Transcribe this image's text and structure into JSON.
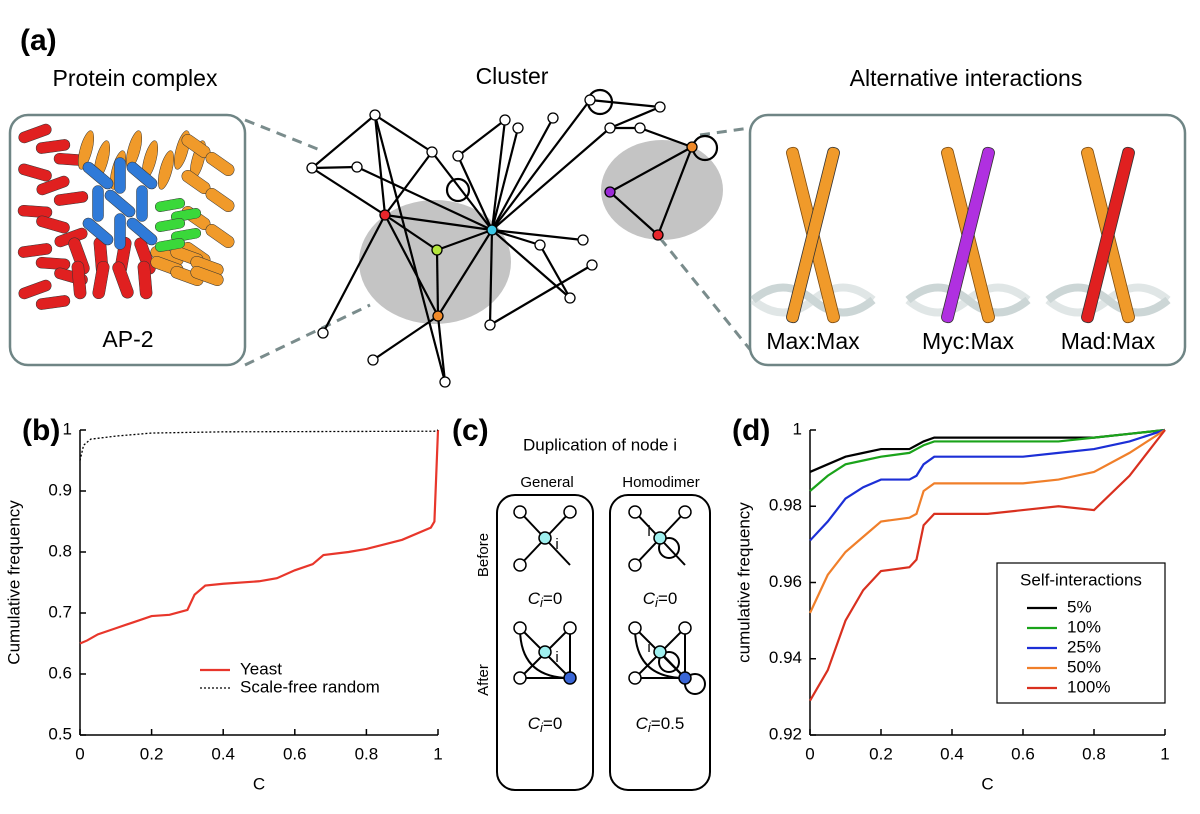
{
  "panel_a": {
    "label": "(a)",
    "complex_title": "Protein complex",
    "complex_name": "AP-2",
    "cluster_title": "Cluster",
    "alt_title": "Alternative interactions",
    "alt_labels": [
      "Max:Max",
      "Myc:Max",
      "Mad:Max"
    ]
  },
  "panel_c": {
    "label": "(c)",
    "title": "Duplication of node i",
    "columns": [
      "General",
      "Homodimer"
    ],
    "rows": [
      "Before",
      "After"
    ],
    "node_label": "i",
    "symbol": "C",
    "index": "i",
    "coefficients": [
      "=0",
      "=0",
      "=0",
      "=0.5"
    ]
  },
  "chart_data": [
    {
      "type": "line",
      "panel_label": "(b)",
      "xlabel": "C",
      "ylabel": "Cumulative frequency",
      "xlim": [
        0,
        1
      ],
      "ylim": [
        0.5,
        1
      ],
      "xticks": [
        0,
        0.2,
        0.4,
        0.6,
        0.8,
        1
      ],
      "yticks": [
        0.5,
        0.6,
        0.7,
        0.8,
        0.9,
        1
      ],
      "legend": "lower right",
      "legend_text_in_series_color": true,
      "series": [
        {
          "name": "Yeast",
          "color": "#e8362b",
          "dash": "solid",
          "x": [
            0,
            0.02,
            0.05,
            0.1,
            0.15,
            0.2,
            0.25,
            0.3,
            0.32,
            0.35,
            0.4,
            0.5,
            0.55,
            0.6,
            0.65,
            0.68,
            0.75,
            0.8,
            0.9,
            0.98,
            0.99,
            1
          ],
          "values": [
            0.65,
            0.655,
            0.665,
            0.675,
            0.685,
            0.695,
            0.697,
            0.705,
            0.73,
            0.745,
            0.748,
            0.752,
            0.757,
            0.77,
            0.78,
            0.795,
            0.8,
            0.805,
            0.82,
            0.84,
            0.85,
            1
          ]
        },
        {
          "name": "Scale-free random",
          "color": "#000000",
          "dash": "dotted",
          "x": [
            0,
            0.01,
            0.03,
            0.1,
            0.2,
            0.4,
            0.99,
            1
          ],
          "values": [
            0.95,
            0.975,
            0.985,
            0.99,
            0.995,
            0.997,
            0.998,
            1
          ]
        }
      ]
    },
    {
      "type": "line",
      "panel_label": "(d)",
      "xlabel": "C",
      "ylabel": "cumulative frequency",
      "xlim": [
        0,
        1
      ],
      "ylim": [
        0.92,
        1
      ],
      "xticks": [
        0,
        0.2,
        0.4,
        0.6,
        0.8,
        1
      ],
      "yticks": [
        0.92,
        0.94,
        0.96,
        0.98,
        1
      ],
      "legend": "center right",
      "legend_title": "Self-interactions",
      "x": [
        0,
        0.05,
        0.1,
        0.15,
        0.2,
        0.28,
        0.3,
        0.32,
        0.35,
        0.4,
        0.5,
        0.6,
        0.7,
        0.8,
        0.9,
        1
      ],
      "series": [
        {
          "name": "5%",
          "color": "#000000",
          "values": [
            0.989,
            0.991,
            0.993,
            0.994,
            0.995,
            0.995,
            0.996,
            0.997,
            0.998,
            0.998,
            0.998,
            0.998,
            0.998,
            0.998,
            0.999,
            1
          ]
        },
        {
          "name": "10%",
          "color": "#1aa31a",
          "values": [
            0.984,
            0.988,
            0.991,
            0.992,
            0.993,
            0.994,
            0.995,
            0.996,
            0.997,
            0.997,
            0.997,
            0.997,
            0.997,
            0.998,
            0.999,
            1
          ]
        },
        {
          "name": "25%",
          "color": "#1c2fd6",
          "values": [
            0.971,
            0.976,
            0.982,
            0.985,
            0.987,
            0.987,
            0.988,
            0.991,
            0.993,
            0.993,
            0.993,
            0.993,
            0.994,
            0.995,
            0.997,
            1
          ]
        },
        {
          "name": "50%",
          "color": "#f07f2a",
          "values": [
            0.952,
            0.962,
            0.968,
            0.972,
            0.976,
            0.977,
            0.978,
            0.984,
            0.986,
            0.986,
            0.986,
            0.986,
            0.987,
            0.989,
            0.994,
            1
          ]
        },
        {
          "name": "100%",
          "color": "#d9301f",
          "values": [
            0.929,
            0.937,
            0.95,
            0.958,
            0.963,
            0.964,
            0.966,
            0.975,
            0.978,
            0.978,
            0.978,
            0.979,
            0.98,
            0.979,
            0.988,
            1
          ]
        }
      ]
    }
  ]
}
